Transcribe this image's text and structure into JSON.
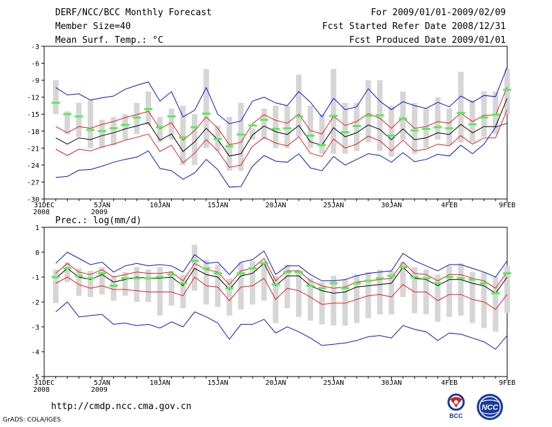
{
  "header": {
    "left": [
      "DERF/NCC/BCC Monthly Forecast",
      "Member Size=40",
      "Mean Surf. Temp.: °C"
    ],
    "right": [
      "For 2009/01/01-2009/02/09",
      "Fcst Started Refer Date 2008/12/31",
      "Fcst Produced Date 2009/01/01"
    ]
  },
  "footer": {
    "url": "http://cmdp.ncc.cma.gov.cn",
    "credit": "GrADS: COLA/IGES"
  },
  "logos": {
    "bcc": "BCC",
    "ncc": "NCC"
  },
  "colors": {
    "box": "#d6d6d6",
    "median": "#55ee55",
    "mean": "#000000",
    "sigma": "#e02020",
    "extreme": "#1010d0"
  },
  "chart_data": [
    {
      "type": "box-ensemble",
      "title": "Mean Surf. Temp.: °C",
      "ylim": [
        -30,
        -3
      ],
      "yticks": [
        -3,
        -6,
        -9,
        -12,
        -15,
        -18,
        -21,
        -24,
        -27,
        -30
      ],
      "xticks": [
        {
          "day": 0,
          "label": "31DEC",
          "sub": "2008"
        },
        {
          "day": 5,
          "label": "5JAN",
          "sub": "2009"
        },
        {
          "day": 10,
          "label": "10JAN",
          "sub": ""
        },
        {
          "day": 15,
          "label": "15JAN",
          "sub": ""
        },
        {
          "day": 20,
          "label": "20JAN",
          "sub": ""
        },
        {
          "day": 25,
          "label": "25JAN",
          "sub": ""
        },
        {
          "day": 30,
          "label": "30JAN",
          "sub": ""
        },
        {
          "day": 35,
          "label": "4FEB",
          "sub": ""
        },
        {
          "day": 40,
          "label": "9FEB",
          "sub": ""
        }
      ],
      "days": [
        1,
        2,
        3,
        4,
        5,
        6,
        7,
        8,
        9,
        10,
        11,
        12,
        13,
        14,
        15,
        16,
        17,
        18,
        19,
        20,
        21,
        22,
        23,
        24,
        25,
        26,
        27,
        28,
        29,
        30,
        31,
        32,
        33,
        34,
        35,
        36,
        37,
        38,
        39,
        40
      ],
      "mean": [
        -19.2,
        -20.3,
        -19.2,
        -19.5,
        -18.8,
        -18.3,
        -17.6,
        -17.1,
        -16.5,
        -19.6,
        -18.5,
        -21.6,
        -19.9,
        -17.5,
        -19.5,
        -22.4,
        -22.0,
        -18.7,
        -17.1,
        -18.1,
        -18.6,
        -17.0,
        -19.9,
        -20.5,
        -17.4,
        -19.0,
        -18.3,
        -16.9,
        -17.7,
        -19.5,
        -17.6,
        -19.5,
        -19.2,
        -18.3,
        -18.6,
        -16.8,
        -18.3,
        -17.2,
        -17.2,
        -12.2
      ],
      "plus_sigma": [
        -17.2,
        -18.3,
        -17.2,
        -17.5,
        -16.8,
        -16.3,
        -15.6,
        -15.1,
        -14.5,
        -17.6,
        -16.5,
        -19.6,
        -17.9,
        -15.5,
        -17.5,
        -20.4,
        -20.0,
        -16.7,
        -15.1,
        -16.1,
        -16.6,
        -15.0,
        -17.9,
        -18.5,
        -15.4,
        -17.0,
        -16.3,
        -14.9,
        -15.7,
        -17.5,
        -15.6,
        -17.5,
        -17.2,
        -16.3,
        -16.6,
        -14.8,
        -16.3,
        -15.2,
        -15.2,
        -10.2
      ],
      "minus_sigma": [
        -21.2,
        -22.3,
        -21.2,
        -21.5,
        -20.8,
        -20.3,
        -19.6,
        -19.1,
        -18.5,
        -21.6,
        -20.5,
        -23.6,
        -21.9,
        -19.5,
        -21.5,
        -24.4,
        -24.0,
        -20.7,
        -19.1,
        -20.1,
        -20.6,
        -19.0,
        -21.9,
        -22.5,
        -19.4,
        -21.0,
        -20.3,
        -18.9,
        -19.7,
        -21.5,
        -19.6,
        -21.5,
        -21.2,
        -20.3,
        -20.6,
        -18.8,
        -20.3,
        -19.2,
        -19.2,
        -14.2
      ],
      "max": [
        -10.3,
        -11.6,
        -11.4,
        -12.5,
        -12.1,
        -11.8,
        -10.6,
        -9.9,
        -9.3,
        -12.7,
        -11.0,
        -15.5,
        -14.3,
        -10.3,
        -15.0,
        -16.7,
        -16.2,
        -12.7,
        -12.0,
        -13.0,
        -13.5,
        -11.0,
        -12.9,
        -15.5,
        -12.2,
        -14.2,
        -13.7,
        -10.5,
        -12.7,
        -14.2,
        -12.8,
        -13.5,
        -14.0,
        -12.9,
        -13.7,
        -11.8,
        -12.9,
        -11.7,
        -11.9,
        -6.7
      ],
      "min": [
        -26.2,
        -26.0,
        -24.9,
        -24.8,
        -24.2,
        -23.5,
        -23.0,
        -22.6,
        -21.5,
        -24.6,
        -25.0,
        -26.5,
        -25.4,
        -23.0,
        -24.8,
        -27.9,
        -27.8,
        -24.2,
        -22.3,
        -23.3,
        -23.5,
        -22.0,
        -24.5,
        -25.0,
        -22.5,
        -24.0,
        -23.0,
        -22.0,
        -22.3,
        -23.5,
        -21.8,
        -23.4,
        -23.0,
        -22.1,
        -22.4,
        -20.5,
        -22.0,
        -20.3,
        -17.3,
        -16.6
      ],
      "box_high": [
        -9.0,
        -14.5,
        -13.0,
        -12.5,
        -16.0,
        -15.5,
        -15.0,
        -13.0,
        -11.0,
        -15.5,
        -14.0,
        -13.5,
        -15.0,
        -7.0,
        -17.0,
        -15.5,
        -13.0,
        -17.5,
        -14.0,
        -13.5,
        -13.5,
        -8.0,
        -13.5,
        -15.0,
        -7.0,
        -13.0,
        -13.0,
        -9.0,
        -9.0,
        -13.5,
        -11.0,
        -13.0,
        -14.0,
        -12.0,
        -14.0,
        -7.5,
        -12.5,
        -11.0,
        -11.0,
        -7.0
      ],
      "box_low": [
        -15.0,
        -18.5,
        -19.0,
        -21.0,
        -21.0,
        -20.5,
        -19.5,
        -18.5,
        -17.0,
        -20.0,
        -19.5,
        -24.0,
        -24.0,
        -21.0,
        -21.5,
        -25.0,
        -25.0,
        -19.5,
        -19.5,
        -21.0,
        -21.0,
        -19.0,
        -21.0,
        -22.0,
        -22.0,
        -22.0,
        -21.5,
        -20.0,
        -21.5,
        -22.5,
        -19.5,
        -22.0,
        -21.0,
        -19.5,
        -20.5,
        -20.0,
        -20.0,
        -19.0,
        -18.5,
        -15.0
      ],
      "median": [
        -13.0,
        -15.0,
        -15.4,
        -17.8,
        -18.0,
        -17.5,
        -16.9,
        -15.6,
        -14.1,
        -17.3,
        -15.4,
        -19.1,
        -17.3,
        -14.9,
        -19.4,
        -20.7,
        -18.6,
        -17.0,
        -16.0,
        -17.6,
        -17.5,
        -15.4,
        -18.8,
        -20.5,
        -15.3,
        -18.2,
        -17.1,
        -15.3,
        -15.2,
        -18.8,
        -15.8,
        -17.9,
        -17.6,
        -17.3,
        -17.5,
        -14.8,
        -16.8,
        -15.6,
        -15.1,
        -10.7
      ]
    },
    {
      "type": "box-ensemble",
      "title": "Prec.: log(mm/d)",
      "ylim": [
        -5,
        1
      ],
      "yticks": [
        1,
        0,
        -1,
        -2,
        -3,
        -4,
        -5
      ],
      "xticks": [
        {
          "day": 0,
          "label": "31DEC",
          "sub": "2008"
        },
        {
          "day": 5,
          "label": "5JAN",
          "sub": "2009"
        },
        {
          "day": 10,
          "label": "10JAN",
          "sub": ""
        },
        {
          "day": 15,
          "label": "15JAN",
          "sub": ""
        },
        {
          "day": 20,
          "label": "20JAN",
          "sub": ""
        },
        {
          "day": 25,
          "label": "25JAN",
          "sub": ""
        },
        {
          "day": 30,
          "label": "30JAN",
          "sub": ""
        },
        {
          "day": 35,
          "label": "4FEB",
          "sub": ""
        },
        {
          "day": 40,
          "label": "9FEB",
          "sub": ""
        }
      ],
      "days": [
        1,
        2,
        3,
        4,
        5,
        6,
        7,
        8,
        9,
        10,
        11,
        12,
        13,
        14,
        15,
        16,
        17,
        18,
        19,
        20,
        21,
        22,
        23,
        24,
        25,
        26,
        27,
        28,
        29,
        30,
        31,
        32,
        33,
        34,
        35,
        36,
        37,
        38,
        39,
        40
      ],
      "mean": [
        -1.05,
        -0.65,
        -1.0,
        -1.1,
        -0.9,
        -1.2,
        -1.1,
        -1.0,
        -1.05,
        -1.05,
        -1.0,
        -1.35,
        -0.65,
        -0.9,
        -1.0,
        -1.5,
        -0.95,
        -0.85,
        -0.45,
        -1.35,
        -0.95,
        -0.95,
        -1.35,
        -1.55,
        -1.65,
        -1.6,
        -1.4,
        -1.35,
        -1.3,
        -1.25,
        -0.6,
        -1.05,
        -1.1,
        -1.35,
        -1.1,
        -1.1,
        -1.25,
        -1.35,
        -1.65,
        -1.0
      ],
      "plus_sigma": [
        -0.85,
        -0.45,
        -0.8,
        -0.9,
        -0.7,
        -1.0,
        -0.9,
        -0.8,
        -0.85,
        -0.85,
        -0.8,
        -1.15,
        -0.45,
        -0.7,
        -0.8,
        -1.3,
        -0.75,
        -0.65,
        -0.25,
        -1.15,
        -0.75,
        -0.75,
        -1.15,
        -1.35,
        -1.45,
        -1.4,
        -1.2,
        -1.15,
        -1.1,
        -1.05,
        -0.4,
        -0.85,
        -0.9,
        -1.15,
        -0.9,
        -0.9,
        -1.05,
        -1.15,
        -1.45,
        -0.8
      ],
      "minus_sigma": [
        -1.25,
        -1.0,
        -1.3,
        -1.45,
        -1.35,
        -1.5,
        -1.5,
        -1.55,
        -1.6,
        -1.6,
        -1.6,
        -1.75,
        -1.0,
        -1.35,
        -1.4,
        -1.95,
        -1.4,
        -1.35,
        -1.05,
        -1.9,
        -1.45,
        -1.55,
        -1.8,
        -2.1,
        -2.05,
        -2.05,
        -1.9,
        -1.75,
        -1.7,
        -1.8,
        -1.3,
        -1.6,
        -1.6,
        -1.95,
        -1.7,
        -1.7,
        -1.9,
        -2.0,
        -2.3,
        -1.7
      ],
      "max": [
        -0.45,
        0.0,
        -0.25,
        -0.5,
        -0.4,
        -0.8,
        -0.55,
        -0.45,
        -0.55,
        -0.5,
        -0.55,
        -0.8,
        -0.1,
        -0.45,
        -0.4,
        -0.9,
        -0.4,
        -0.3,
        0.05,
        -0.9,
        -0.55,
        -0.55,
        -0.9,
        -1.15,
        -1.15,
        -1.1,
        -0.95,
        -0.85,
        -0.8,
        -0.75,
        -0.05,
        -0.35,
        -0.55,
        -0.75,
        -0.5,
        -0.5,
        -0.65,
        -0.8,
        -1.0,
        -0.35
      ],
      "min": [
        -2.4,
        -2.0,
        -2.6,
        -2.55,
        -2.5,
        -2.9,
        -2.85,
        -2.95,
        -2.9,
        -3.05,
        -2.8,
        -3.0,
        -2.4,
        -2.6,
        -2.85,
        -3.5,
        -2.9,
        -2.9,
        -2.7,
        -3.25,
        -3.0,
        -3.2,
        -3.45,
        -3.75,
        -3.7,
        -3.65,
        -3.55,
        -3.4,
        -3.35,
        -3.45,
        -2.95,
        -3.1,
        -3.2,
        -3.55,
        -3.25,
        -3.3,
        -3.45,
        -3.6,
        -3.9,
        -3.35
      ],
      "box_high": [
        -0.7,
        -0.4,
        -0.65,
        -0.75,
        -0.6,
        -0.95,
        -0.8,
        -0.6,
        -0.7,
        -0.6,
        -0.75,
        -0.9,
        0.3,
        -0.3,
        -0.5,
        -1.05,
        -0.4,
        -0.35,
        -0.35,
        -0.95,
        -0.5,
        -0.7,
        -1.05,
        -1.2,
        -0.95,
        -1.1,
        -0.9,
        -0.8,
        -0.7,
        -0.75,
        -0.4,
        -0.6,
        -0.7,
        -0.9,
        -0.55,
        -0.45,
        -0.8,
        -0.8,
        -1.0,
        -0.55
      ],
      "box_low": [
        -2.05,
        -1.2,
        -1.75,
        -1.8,
        -1.7,
        -1.95,
        -1.75,
        -2.0,
        -2.0,
        -2.55,
        -2.15,
        -2.25,
        -1.55,
        -2.1,
        -2.2,
        -2.55,
        -2.3,
        -2.1,
        -1.95,
        -2.85,
        -2.25,
        -2.6,
        -2.75,
        -2.9,
        -2.95,
        -2.95,
        -2.85,
        -2.65,
        -2.5,
        -2.5,
        -1.8,
        -2.45,
        -2.5,
        -2.8,
        -2.6,
        -2.55,
        -2.85,
        -3.05,
        -3.2,
        -2.45
      ],
      "median": [
        -1.0,
        -0.65,
        -0.95,
        -1.05,
        -0.85,
        -1.35,
        -1.05,
        -1.05,
        -1.05,
        -1.0,
        -0.9,
        -1.25,
        -0.35,
        -0.65,
        -0.85,
        -1.45,
        -0.85,
        -0.65,
        -0.45,
        -1.3,
        -0.8,
        -0.8,
        -1.35,
        -1.45,
        -1.25,
        -1.45,
        -1.25,
        -1.15,
        -1.05,
        -0.95,
        -0.6,
        -1.0,
        -1.05,
        -1.25,
        -1.0,
        -1.05,
        -1.1,
        -1.25,
        -1.65,
        -0.85
      ]
    }
  ]
}
